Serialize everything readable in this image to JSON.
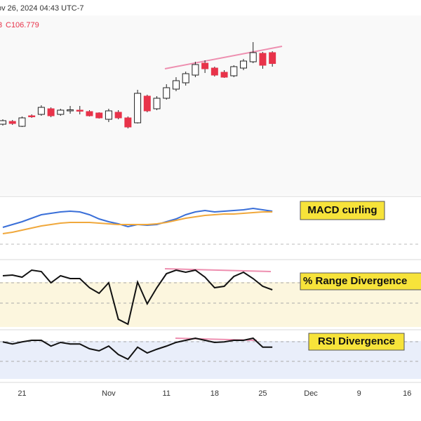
{
  "header": {
    "timestamp": "ov 26, 2024 04:43 UTC-7",
    "ohlc": [
      "3",
      "C106.779"
    ]
  },
  "chart_data": [
    {
      "type": "candlestick",
      "categories": [
        null,
        null,
        "21",
        null,
        null,
        null,
        null,
        null,
        null,
        null,
        null,
        "Nov",
        null,
        null,
        null,
        null,
        null,
        "11",
        null,
        null,
        null,
        null,
        "18",
        null,
        null,
        null,
        null,
        "25",
        null,
        null,
        null,
        null,
        "Dec",
        null,
        null,
        null,
        null,
        "9",
        null,
        null,
        null,
        null,
        "16"
      ],
      "open": [
        103.32,
        103.48,
        103.2,
        103.8,
        103.88,
        104.2,
        103.88,
        104.12,
        104.12,
        104.04,
        103.96,
        103.6,
        104.0,
        103.68,
        103.4,
        104.92,
        104.2,
        104.8,
        105.32,
        105.68,
        106.12,
        106.8,
        106.52,
        106.28,
        106.08,
        106.52,
        106.88,
        107.36,
        107.4,
        null,
        null,
        null,
        null,
        null,
        null,
        null,
        null,
        null,
        null,
        null,
        null,
        null,
        null
      ],
      "high": [
        103.6,
        103.56,
        103.76,
        103.88,
        104.4,
        104.28,
        104.2,
        104.36,
        104.36,
        104.12,
        104.0,
        104.2,
        104.12,
        103.76,
        105.28,
        105.0,
        104.92,
        105.6,
        106.0,
        106.32,
        106.88,
        106.96,
        106.6,
        106.4,
        106.68,
        107.04,
        108.0,
        107.44,
        107.48,
        null,
        null,
        null,
        null,
        null,
        null,
        null,
        null,
        null,
        null,
        null,
        null,
        null,
        null
      ],
      "low": [
        103.24,
        103.28,
        103.16,
        103.68,
        103.8,
        103.72,
        103.8,
        103.92,
        103.88,
        103.76,
        103.64,
        103.44,
        103.6,
        103.08,
        103.36,
        104.0,
        104.12,
        104.72,
        105.2,
        105.52,
        106.0,
        106.24,
        106.04,
        105.96,
        106.0,
        106.4,
        106.8,
        106.48,
        106.6,
        null,
        null,
        null,
        null,
        null,
        null,
        null,
        null,
        null,
        null,
        null,
        null,
        null,
        null
      ],
      "close": [
        103.52,
        103.36,
        103.68,
        103.78,
        104.28,
        103.8,
        104.12,
        104.14,
        104.08,
        103.8,
        103.68,
        104.08,
        103.68,
        103.16,
        105.08,
        104.08,
        104.8,
        105.4,
        105.8,
        106.2,
        106.72,
        106.48,
        106.12,
        106.0,
        106.6,
        106.92,
        107.4,
        106.68,
        106.779,
        null,
        null,
        null,
        null,
        null,
        null,
        null,
        null,
        null,
        null,
        null,
        null,
        null,
        null
      ],
      "up_color": "#ffffff",
      "down_color": "#e8334a",
      "ylim": [
        99.6,
        109.6
      ]
    },
    {
      "type": "line",
      "annotation": "MACD curling",
      "ylim": [
        -0.6,
        0.6
      ],
      "series": [
        {
          "color": "#3a6fd8",
          "values": [
            -0.18,
            -0.1,
            -0.02,
            0.08,
            0.18,
            0.22,
            0.26,
            0.28,
            0.26,
            0.18,
            0.06,
            -0.02,
            -0.08,
            -0.16,
            -0.1,
            -0.12,
            -0.1,
            -0.02,
            0.06,
            0.18,
            0.26,
            0.3,
            0.26,
            0.28,
            0.3,
            0.32,
            0.36,
            0.32,
            0.28
          ]
        },
        {
          "color": "#f0a83c",
          "values": [
            -0.36,
            -0.32,
            -0.26,
            -0.2,
            -0.14,
            -0.1,
            -0.06,
            -0.04,
            -0.04,
            -0.04,
            -0.06,
            -0.08,
            -0.1,
            -0.1,
            -0.1,
            -0.1,
            -0.08,
            -0.04,
            0.02,
            0.08,
            0.12,
            0.16,
            0.18,
            0.2,
            0.2,
            0.22,
            0.24,
            0.26,
            0.26
          ]
        }
      ]
    },
    {
      "type": "line",
      "annotation": "% Range Divergence",
      "ylim": [
        0,
        100
      ],
      "series": [
        {
          "color": "#111111",
          "values": [
            77,
            78,
            75,
            85,
            83,
            67,
            77,
            73,
            73,
            60,
            52,
            67,
            15,
            8,
            68,
            37,
            60,
            80,
            85,
            82,
            85,
            75,
            60,
            62,
            76,
            82,
            73,
            62,
            57
          ]
        }
      ]
    },
    {
      "type": "line",
      "annotation": "RSI Divergence",
      "ylim": [
        0,
        100
      ],
      "series": [
        {
          "color": "#111111",
          "values": [
            77,
            73,
            77,
            80,
            80,
            69,
            76,
            73,
            73,
            64,
            60,
            69,
            53,
            44,
            67,
            56,
            63,
            69,
            76,
            80,
            84,
            80,
            76,
            77,
            80,
            80,
            84,
            67,
            67
          ]
        }
      ]
    }
  ]
}
